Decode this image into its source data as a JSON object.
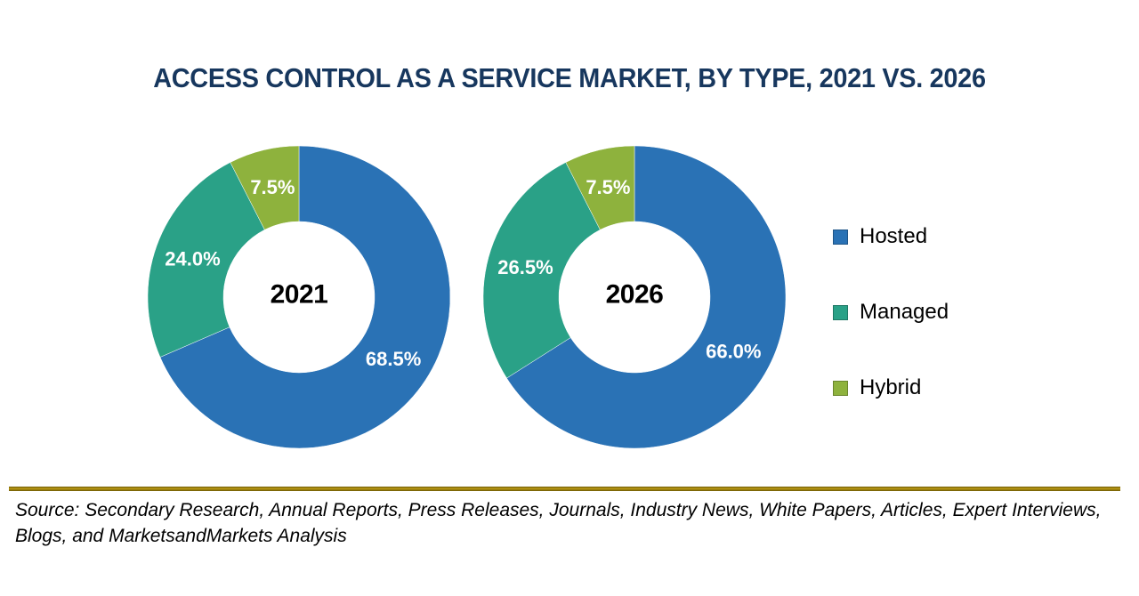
{
  "page": {
    "title": "ACCESS CONTROL AS A SERVICE MARKET, BY TYPE, 2021 VS. 2026"
  },
  "colors": {
    "hosted": "#2A72B5",
    "managed": "#2AA187",
    "hybrid": "#8EB23D",
    "title_text": "#17375E",
    "divider_gold": "#A8890C",
    "slice_label_text": "#FFFFFF",
    "center_label_text": "#000000"
  },
  "legend": {
    "position": "right",
    "items": [
      {
        "label": "Hosted",
        "color": "#2A72B5"
      },
      {
        "label": "Managed",
        "color": "#2AA187"
      },
      {
        "label": "Hybrid",
        "color": "#8EB23D"
      }
    ]
  },
  "chart_data": [
    {
      "type": "pie",
      "subtype": "donut",
      "title": "2021",
      "center_label": "2021",
      "categories": [
        "Hosted",
        "Managed",
        "Hybrid"
      ],
      "values": [
        68.5,
        24.0,
        7.5
      ],
      "value_labels": [
        "68.5%",
        "24.0%",
        "7.5%"
      ],
      "colors": [
        "#2A72B5",
        "#2AA187",
        "#8EB23D"
      ],
      "start_angle_deg": 0,
      "direction": "clockwise",
      "legend_position": "right"
    },
    {
      "type": "pie",
      "subtype": "donut",
      "title": "2026",
      "center_label": "2026",
      "categories": [
        "Hosted",
        "Managed",
        "Hybrid"
      ],
      "values": [
        66.0,
        26.5,
        7.5
      ],
      "value_labels": [
        "66.0%",
        "26.5%",
        "7.5%"
      ],
      "colors": [
        "#2A72B5",
        "#2AA187",
        "#8EB23D"
      ],
      "start_angle_deg": 0,
      "direction": "clockwise",
      "legend_position": "right"
    }
  ],
  "source": {
    "lines": [
      "Source: Secondary Research, Annual Reports, Press Releases, Journals, Industry News, White Papers, Articles, Expert Interviews,",
      "Blogs, and MarketsandMarkets Analysis"
    ]
  }
}
